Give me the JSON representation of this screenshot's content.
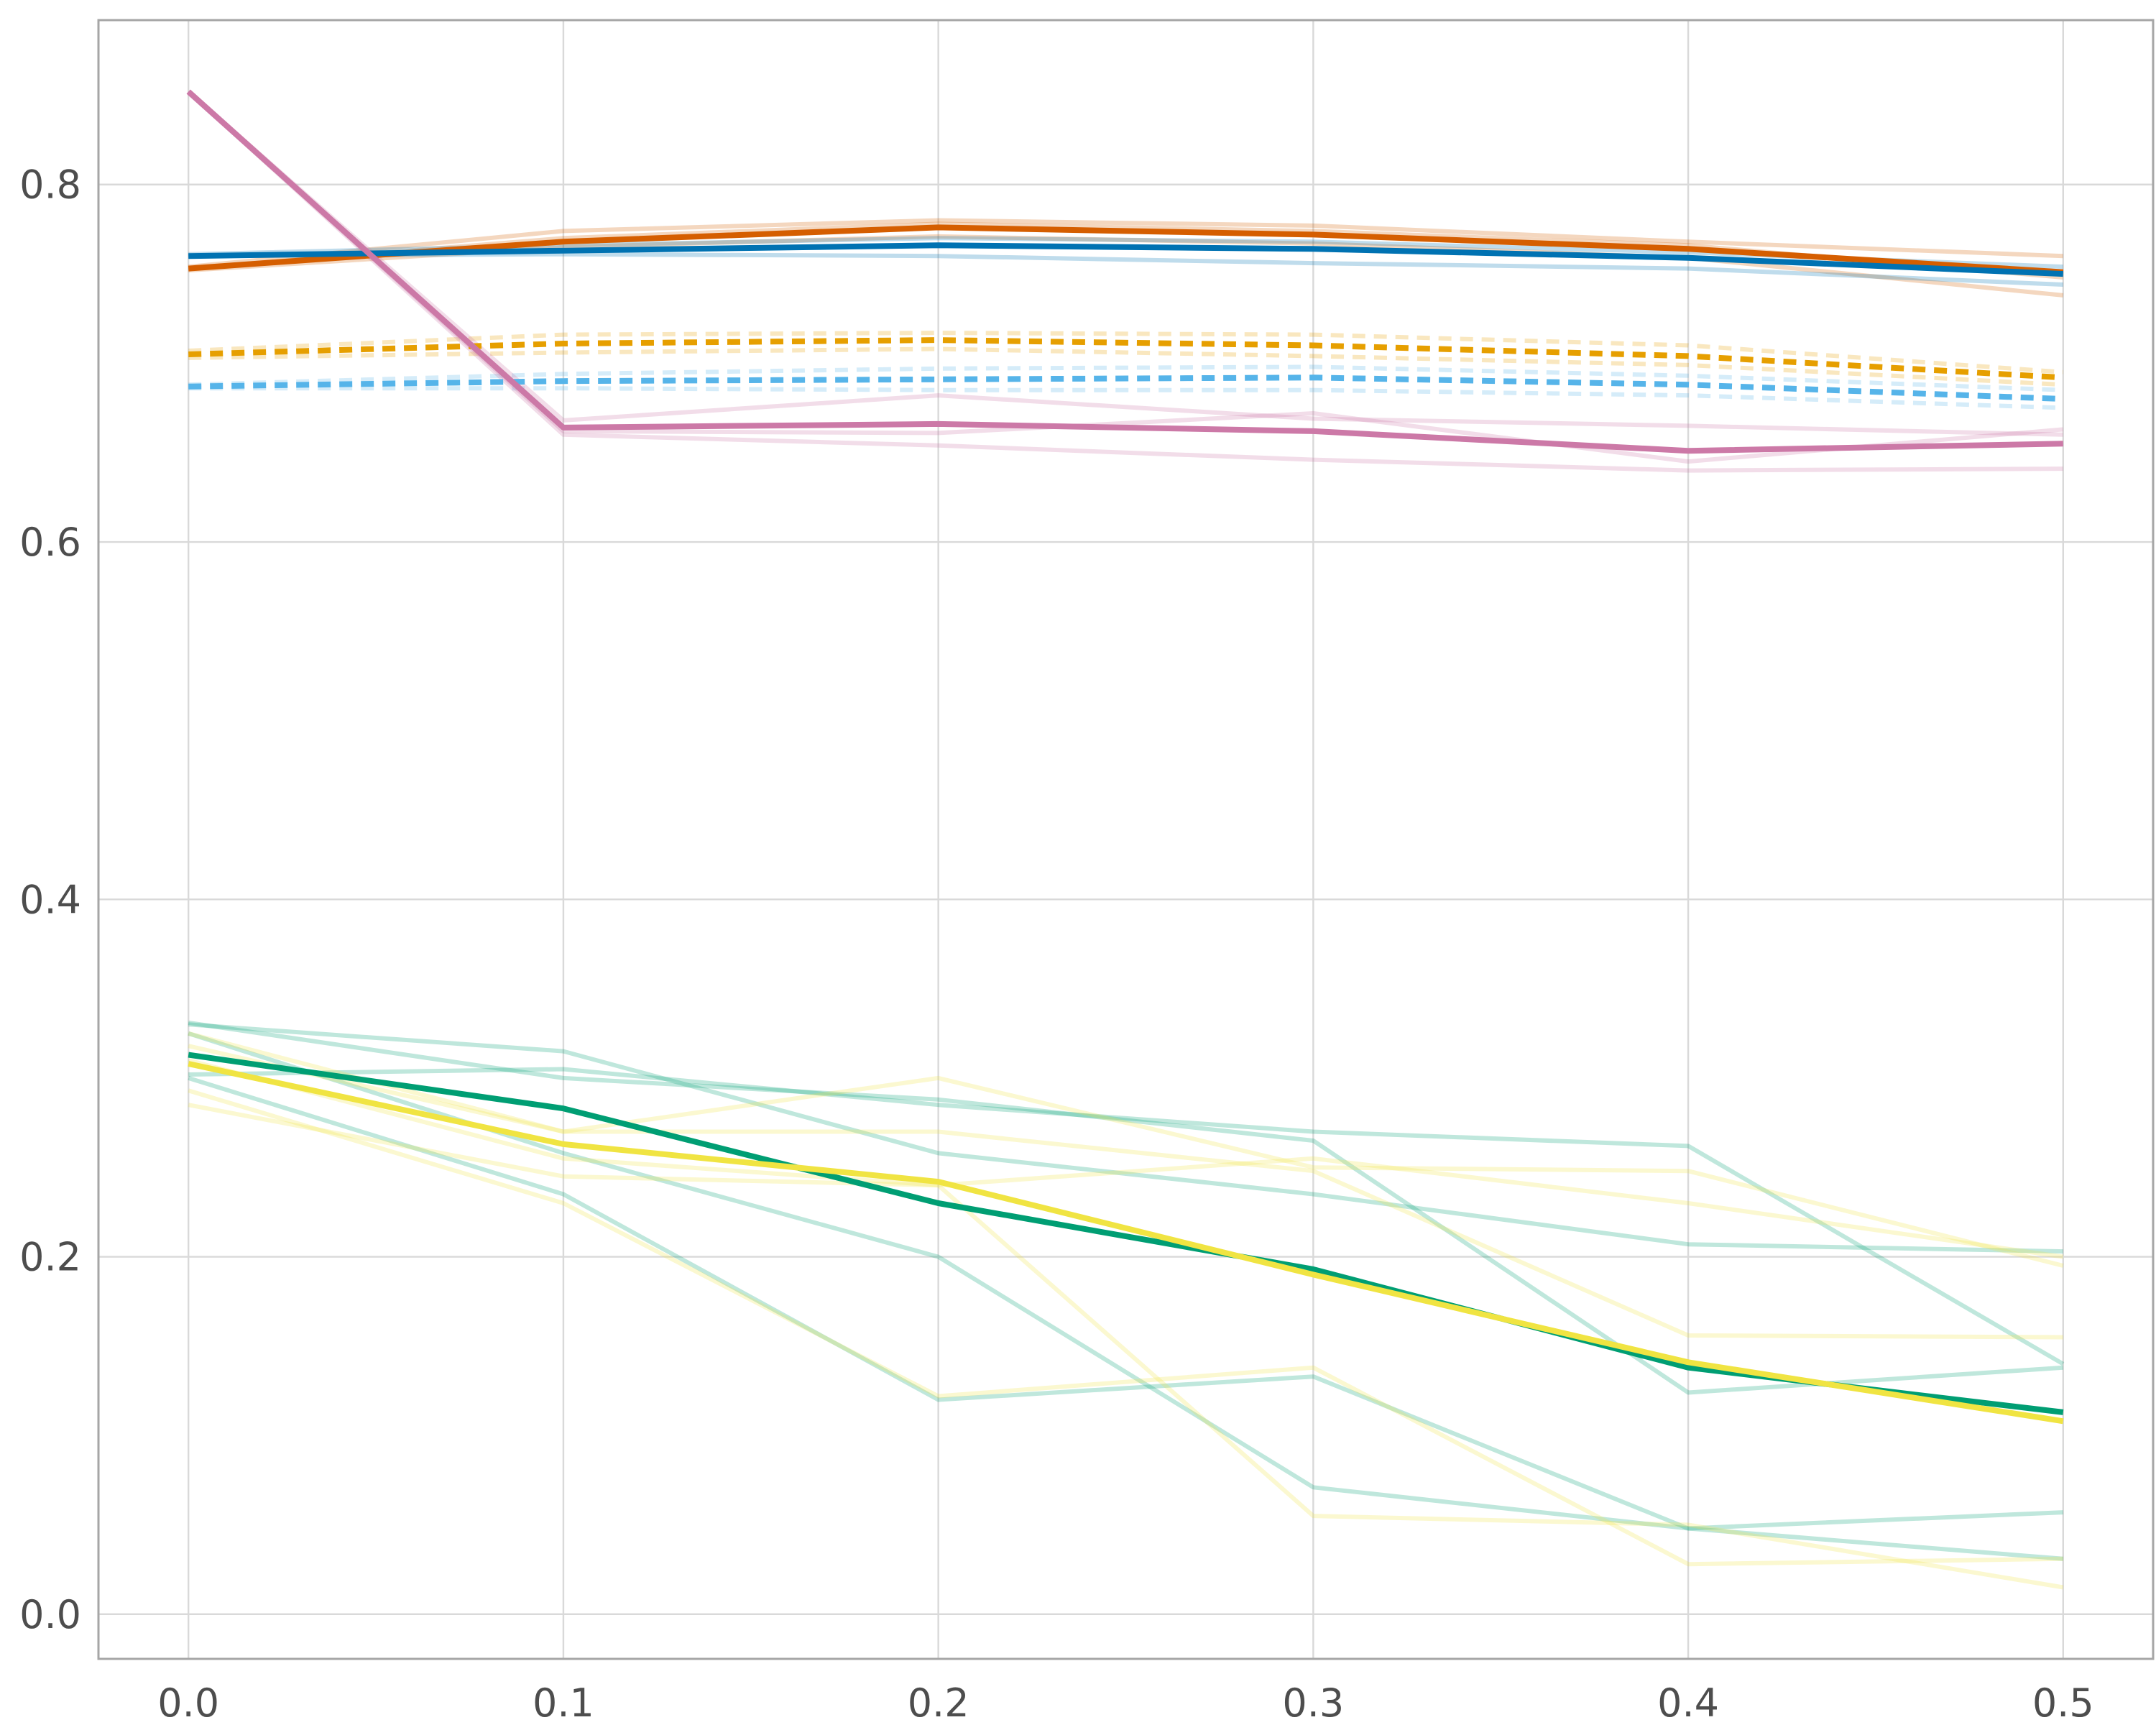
{
  "chart_data": {
    "type": "line",
    "title": "",
    "xlabel": "",
    "ylabel": "",
    "xlim": [
      -0.024,
      0.524
    ],
    "ylim": [
      -0.025,
      0.892
    ],
    "x": [
      0.0,
      0.1,
      0.2,
      0.3,
      0.4,
      0.5
    ],
    "x_ticks": [
      0.0,
      0.1,
      0.2,
      0.3,
      0.4,
      0.5
    ],
    "x_tick_labels": [
      "0.0",
      "0.1",
      "0.2",
      "0.3",
      "0.4",
      "0.5"
    ],
    "y_ticks": [
      0.0,
      0.2,
      0.4,
      0.6,
      0.8
    ],
    "y_tick_labels": [
      "0.0",
      "0.2",
      "0.4",
      "0.6",
      "0.8"
    ],
    "grid": true,
    "legend": "none",
    "series": [
      {
        "color": "#D55E00",
        "style": "solid",
        "role": "mean",
        "values": [
          0.753,
          0.768,
          0.776,
          0.772,
          0.764,
          0.751
        ]
      },
      {
        "color": "#D55E00",
        "style": "solid",
        "role": "replicate",
        "values": [
          0.754,
          0.774,
          0.78,
          0.777,
          0.768,
          0.76
        ]
      },
      {
        "color": "#D55E00",
        "style": "solid",
        "role": "replicate",
        "values": [
          0.752,
          0.765,
          0.771,
          0.767,
          0.759,
          0.738
        ]
      },
      {
        "color": "#D55E00",
        "style": "solid",
        "role": "replicate",
        "values": [
          0.753,
          0.77,
          0.778,
          0.774,
          0.766,
          0.748
        ]
      },
      {
        "color": "#0072B2",
        "style": "solid",
        "role": "mean",
        "values": [
          0.76,
          0.763,
          0.766,
          0.764,
          0.759,
          0.75
        ]
      },
      {
        "color": "#0072B2",
        "style": "solid",
        "role": "replicate",
        "values": [
          0.76,
          0.761,
          0.76,
          0.756,
          0.753,
          0.744
        ]
      },
      {
        "color": "#0072B2",
        "style": "solid",
        "role": "replicate",
        "values": [
          0.761,
          0.766,
          0.77,
          0.768,
          0.762,
          0.754
        ]
      },
      {
        "color": "#E69F00",
        "style": "dashed",
        "role": "mean",
        "values": [
          0.705,
          0.711,
          0.713,
          0.71,
          0.704,
          0.692
        ]
      },
      {
        "color": "#E69F00",
        "style": "dashed",
        "role": "replicate",
        "values": [
          0.707,
          0.716,
          0.717,
          0.716,
          0.71,
          0.695
        ]
      },
      {
        "color": "#E69F00",
        "style": "dashed",
        "role": "replicate",
        "values": [
          0.703,
          0.706,
          0.708,
          0.704,
          0.699,
          0.688
        ]
      },
      {
        "color": "#56B4E9",
        "style": "dashed",
        "role": "mean",
        "values": [
          0.687,
          0.69,
          0.691,
          0.692,
          0.688,
          0.68
        ]
      },
      {
        "color": "#56B4E9",
        "style": "dashed",
        "role": "replicate",
        "values": [
          0.688,
          0.694,
          0.697,
          0.698,
          0.693,
          0.685
        ]
      },
      {
        "color": "#56B4E9",
        "style": "dashed",
        "role": "replicate",
        "values": [
          0.686,
          0.686,
          0.685,
          0.685,
          0.682,
          0.675
        ]
      },
      {
        "color": "#CC79A7",
        "style": "solid",
        "role": "mean",
        "values": [
          0.852,
          0.664,
          0.666,
          0.662,
          0.651,
          0.655
        ]
      },
      {
        "color": "#CC79A7",
        "style": "solid",
        "role": "replicate",
        "values": [
          0.852,
          0.668,
          0.682,
          0.669,
          0.665,
          0.66
        ]
      },
      {
        "color": "#CC79A7",
        "style": "solid",
        "role": "replicate",
        "values": [
          0.852,
          0.66,
          0.654,
          0.646,
          0.64,
          0.641
        ]
      },
      {
        "color": "#CC79A7",
        "style": "solid",
        "role": "replicate",
        "values": [
          0.852,
          0.662,
          0.661,
          0.672,
          0.645,
          0.663
        ]
      },
      {
        "color": "#009E73",
        "style": "solid",
        "role": "mean",
        "values": [
          0.313,
          0.283,
          0.23,
          0.193,
          0.138,
          0.113
        ]
      },
      {
        "color": "#009E73",
        "style": "solid",
        "role": "replicate",
        "values": [
          0.33,
          0.315,
          0.258,
          0.235,
          0.207,
          0.203
        ]
      },
      {
        "color": "#009E73",
        "style": "solid",
        "role": "replicate",
        "values": [
          0.302,
          0.305,
          0.285,
          0.27,
          0.262,
          0.14
        ]
      },
      {
        "color": "#009E73",
        "style": "solid",
        "role": "replicate",
        "values": [
          0.3,
          0.235,
          0.12,
          0.133,
          0.048,
          0.057
        ]
      },
      {
        "color": "#009E73",
        "style": "solid",
        "role": "replicate",
        "values": [
          0.325,
          0.258,
          0.2,
          0.071,
          0.048,
          0.031
        ]
      },
      {
        "color": "#009E73",
        "style": "solid",
        "role": "replicate",
        "values": [
          0.331,
          0.3,
          0.288,
          0.265,
          0.124,
          0.138
        ]
      },
      {
        "color": "#F0E442",
        "style": "solid",
        "role": "mean",
        "values": [
          0.308,
          0.263,
          0.242,
          0.19,
          0.141,
          0.108
        ]
      },
      {
        "color": "#F0E442",
        "style": "solid",
        "role": "replicate",
        "values": [
          0.325,
          0.27,
          0.3,
          0.25,
          0.248,
          0.195
        ]
      },
      {
        "color": "#F0E442",
        "style": "solid",
        "role": "replicate",
        "values": [
          0.293,
          0.23,
          0.122,
          0.138,
          0.028,
          0.031
        ]
      },
      {
        "color": "#F0E442",
        "style": "solid",
        "role": "replicate",
        "values": [
          0.285,
          0.245,
          0.24,
          0.055,
          0.05,
          0.015
        ]
      },
      {
        "color": "#F0E442",
        "style": "solid",
        "role": "replicate",
        "values": [
          0.318,
          0.27,
          0.27,
          0.248,
          0.156,
          0.155
        ]
      },
      {
        "color": "#F0E442",
        "style": "solid",
        "role": "replicate",
        "values": [
          0.31,
          0.255,
          0.24,
          0.255,
          0.23,
          0.2
        ]
      }
    ]
  }
}
